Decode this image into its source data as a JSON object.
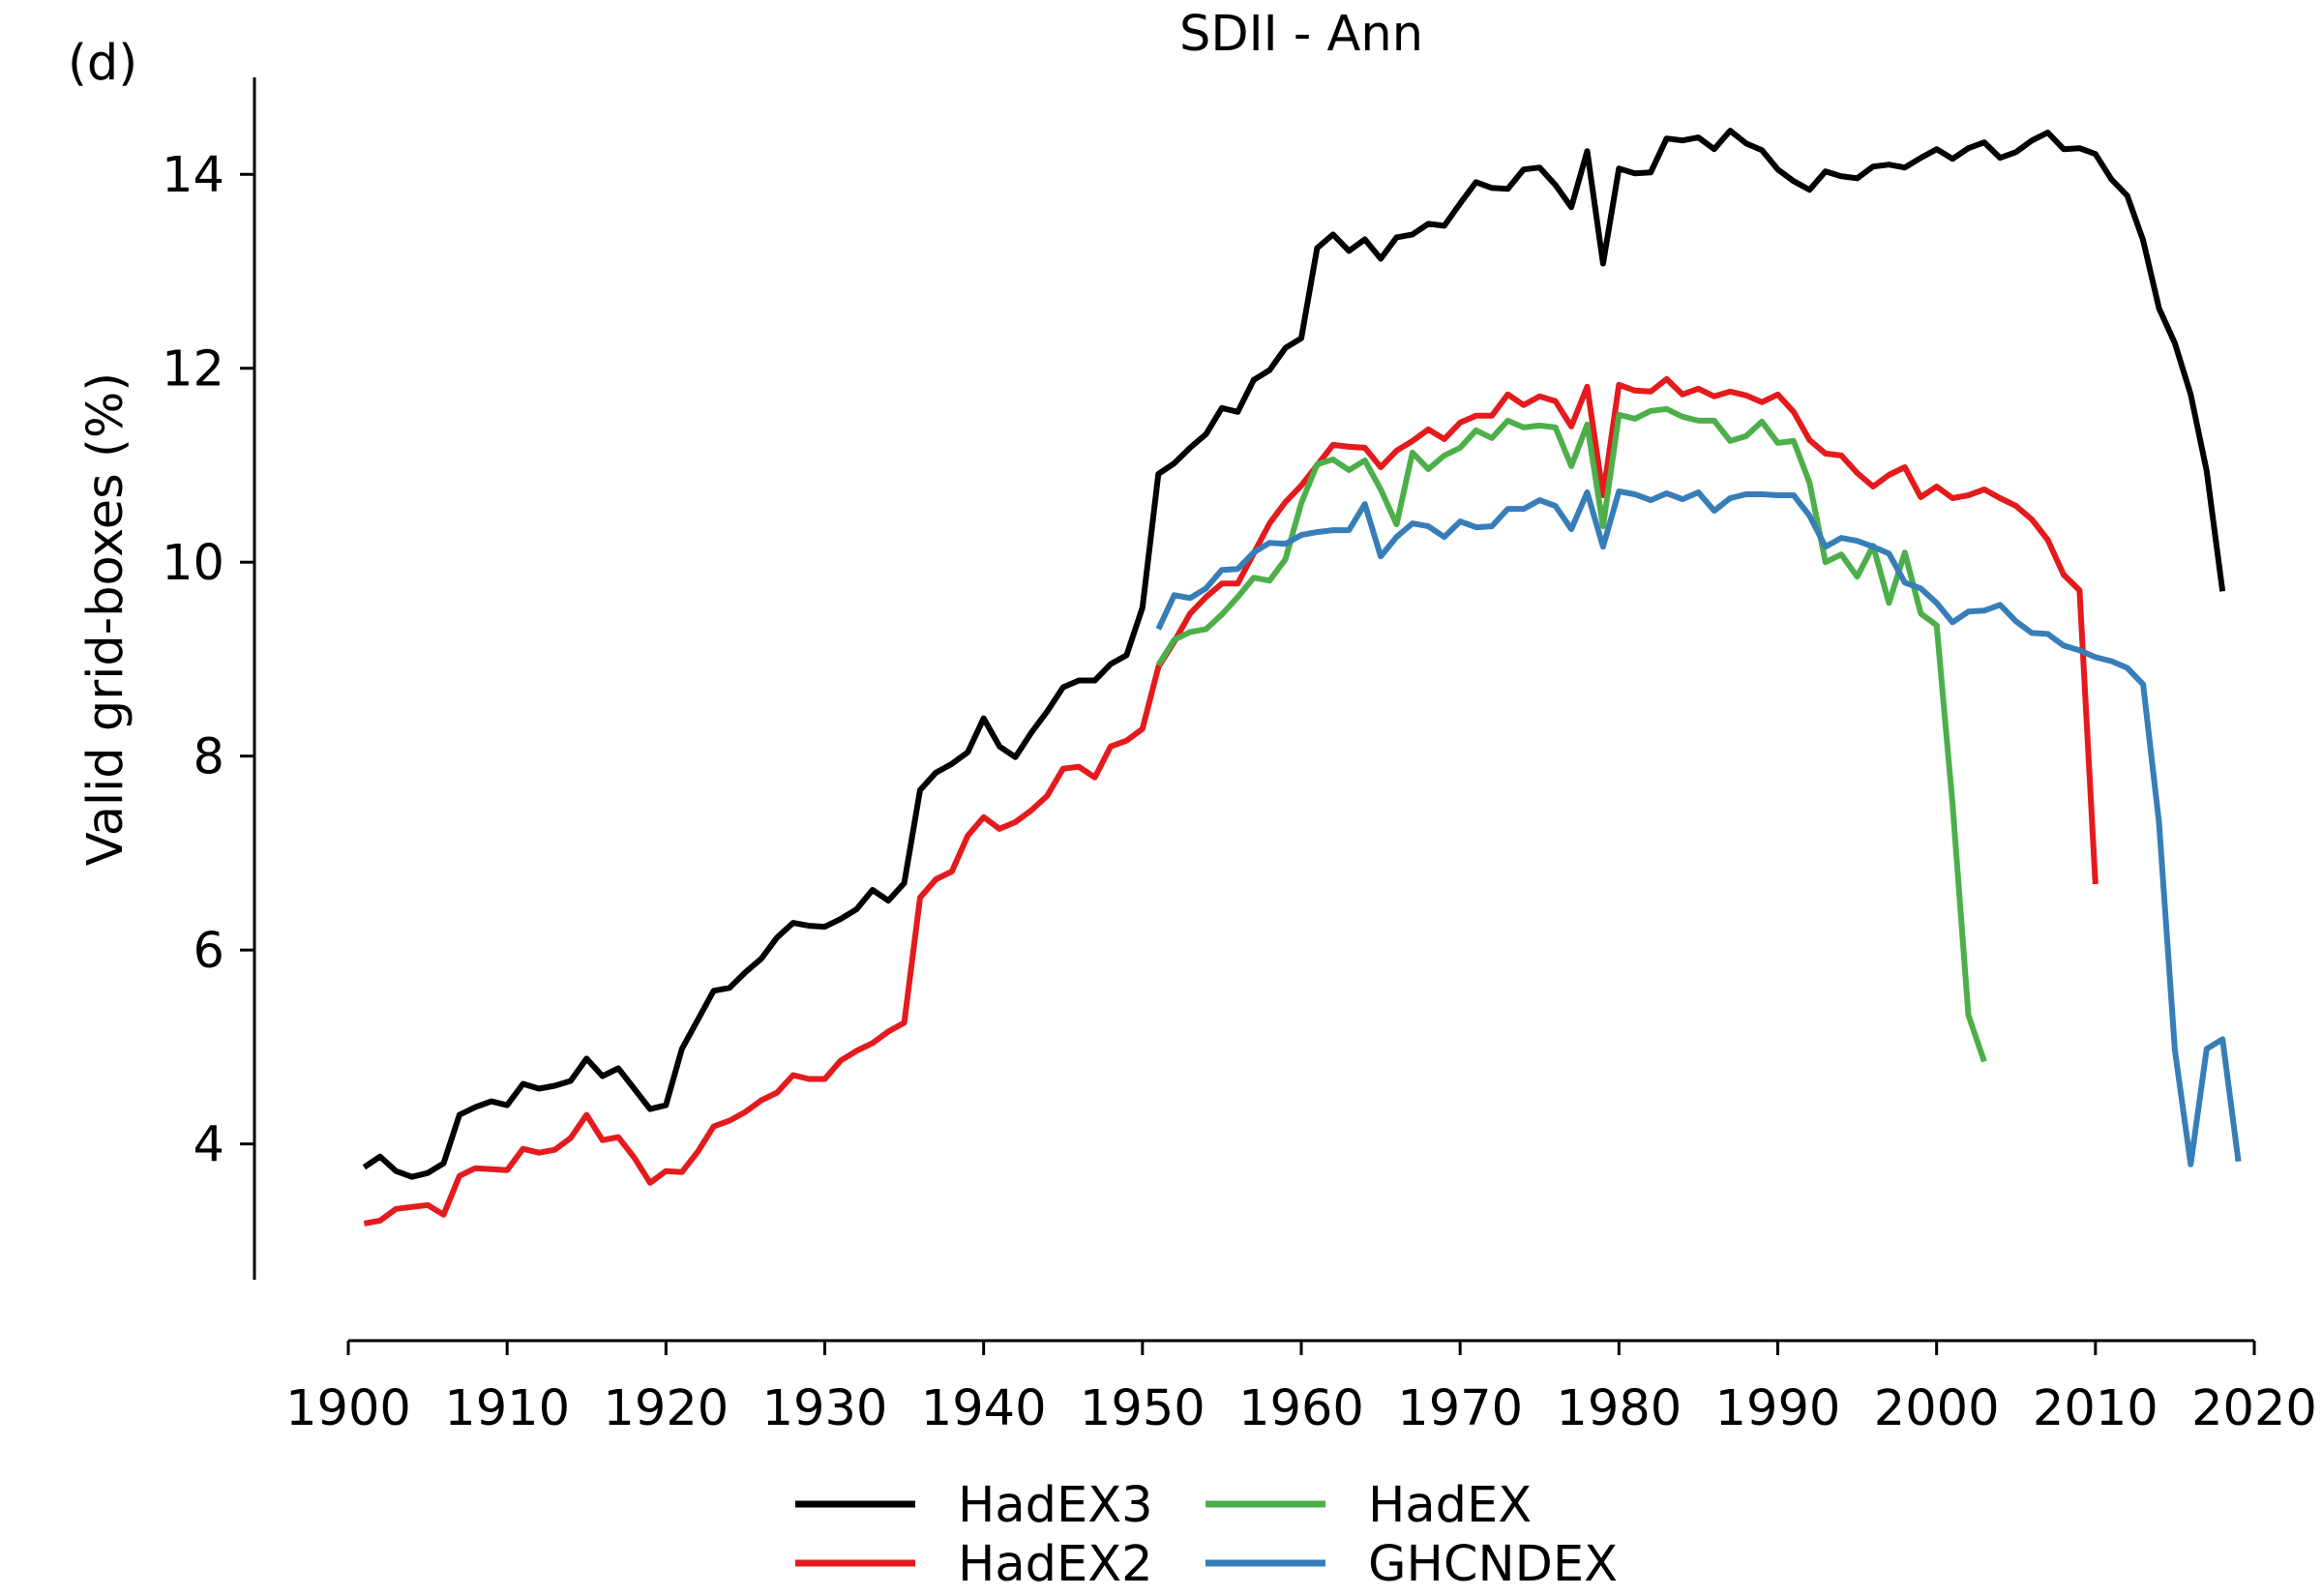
{
  "panel_label": "(d)",
  "chart_data": {
    "type": "line",
    "title": "SDII - Ann",
    "xlabel": "",
    "ylabel": "Valid grid-boxes (%)",
    "xlim": [
      1895,
      2020
    ],
    "ylim": [
      2.6,
      15.0
    ],
    "x_axis_range": [
      1900,
      2020
    ],
    "y_axis_range": [
      2.6,
      15.0
    ],
    "xticks": [
      1900,
      1910,
      1920,
      1930,
      1940,
      1950,
      1960,
      1970,
      1980,
      1990,
      2000,
      2010,
      2020
    ],
    "yticks": [
      4,
      6,
      8,
      10,
      12,
      14
    ],
    "grid": false,
    "legend": {
      "placement": "bottom",
      "columns": 2,
      "order": [
        "HadEX3",
        "HadEX2",
        "HadEX",
        "GHCNDEX"
      ]
    },
    "series": [
      {
        "name": "HadEX3",
        "color": "#000000",
        "x_start": 1901,
        "values": [
          3.76,
          3.87,
          3.72,
          3.66,
          3.7,
          3.8,
          4.3,
          4.38,
          4.44,
          4.4,
          4.62,
          4.57,
          4.6,
          4.65,
          4.88,
          4.7,
          4.78,
          4.57,
          4.36,
          4.4,
          4.98,
          5.28,
          5.58,
          5.61,
          5.77,
          5.91,
          6.13,
          6.28,
          6.25,
          6.24,
          6.32,
          6.42,
          6.62,
          6.51,
          6.69,
          7.65,
          7.83,
          7.92,
          8.04,
          8.39,
          8.1,
          7.99,
          8.24,
          8.46,
          8.71,
          8.78,
          8.78,
          8.95,
          9.04,
          9.53,
          10.91,
          11.02,
          11.18,
          11.32,
          11.59,
          11.55,
          11.88,
          11.98,
          12.21,
          12.31,
          13.24,
          13.38,
          13.21,
          13.33,
          13.13,
          13.35,
          13.38,
          13.49,
          13.47,
          13.7,
          13.92,
          13.86,
          13.85,
          14.05,
          14.07,
          13.89,
          13.66,
          14.24,
          13.08,
          14.06,
          14.01,
          14.02,
          14.37,
          14.35,
          14.38,
          14.26,
          14.45,
          14.32,
          14.25,
          14.05,
          13.93,
          13.84,
          14.03,
          13.98,
          13.96,
          14.08,
          14.1,
          14.07,
          14.17,
          14.26,
          14.16,
          14.27,
          14.33,
          14.17,
          14.23,
          14.35,
          14.43,
          14.26,
          14.27,
          14.21,
          13.95,
          13.78,
          13.32,
          12.62,
          12.26,
          11.73,
          10.94,
          9.7
        ]
      },
      {
        "name": "HadEX2",
        "color": "#e41a1c",
        "x_start": 1901,
        "values": [
          3.18,
          3.21,
          3.33,
          3.35,
          3.37,
          3.27,
          3.67,
          3.75,
          3.74,
          3.73,
          3.95,
          3.91,
          3.94,
          4.06,
          4.3,
          4.04,
          4.07,
          3.86,
          3.6,
          3.72,
          3.71,
          3.92,
          4.18,
          4.24,
          4.33,
          4.45,
          4.53,
          4.71,
          4.67,
          4.67,
          4.86,
          4.96,
          5.04,
          5.16,
          5.25,
          6.54,
          6.73,
          6.81,
          7.18,
          7.37,
          7.25,
          7.32,
          7.44,
          7.59,
          7.87,
          7.89,
          7.78,
          8.1,
          8.16,
          8.28,
          8.92,
          9.18,
          9.47,
          9.64,
          9.78,
          9.78,
          10.09,
          10.4,
          10.62,
          10.79,
          11.0,
          11.21,
          11.19,
          11.18,
          10.98,
          11.15,
          11.25,
          11.37,
          11.27,
          11.44,
          11.51,
          11.51,
          11.73,
          11.62,
          11.71,
          11.66,
          11.4,
          11.81,
          10.69,
          11.83,
          11.77,
          11.76,
          11.89,
          11.73,
          11.79,
          11.71,
          11.76,
          11.72,
          11.65,
          11.73,
          11.55,
          11.26,
          11.12,
          11.1,
          10.92,
          10.78,
          10.9,
          10.98,
          10.67,
          10.78,
          10.66,
          10.69,
          10.75,
          10.66,
          10.58,
          10.44,
          10.23,
          9.87,
          9.71,
          6.68
        ]
      },
      {
        "name": "HadEX",
        "color": "#4daf4a",
        "x_start": 1951,
        "values": [
          8.94,
          9.2,
          9.28,
          9.31,
          9.46,
          9.64,
          9.84,
          9.81,
          10.03,
          10.61,
          11.01,
          11.06,
          10.95,
          11.05,
          10.75,
          10.39,
          11.13,
          10.96,
          11.1,
          11.18,
          11.36,
          11.28,
          11.46,
          11.39,
          11.41,
          11.39,
          10.99,
          11.42,
          10.37,
          11.52,
          11.48,
          11.56,
          11.58,
          11.5,
          11.46,
          11.46,
          11.25,
          11.3,
          11.45,
          11.23,
          11.25,
          10.82,
          10.0,
          10.08,
          9.85,
          10.17,
          9.58,
          10.1,
          9.47,
          9.35,
          7.51,
          5.33,
          4.85
        ]
      },
      {
        "name": "GHCNDEX",
        "color": "#377eb8",
        "x_start": 1951,
        "values": [
          9.31,
          9.66,
          9.63,
          9.73,
          9.92,
          9.93,
          10.1,
          10.2,
          10.19,
          10.28,
          10.31,
          10.33,
          10.33,
          10.6,
          10.06,
          10.26,
          10.4,
          10.37,
          10.26,
          10.42,
          10.36,
          10.37,
          10.55,
          10.55,
          10.64,
          10.58,
          10.34,
          10.72,
          10.16,
          10.73,
          10.7,
          10.64,
          10.71,
          10.65,
          10.72,
          10.53,
          10.66,
          10.7,
          10.7,
          10.69,
          10.69,
          10.48,
          10.16,
          10.25,
          10.22,
          10.16,
          10.09,
          9.79,
          9.73,
          9.58,
          9.38,
          9.49,
          9.5,
          9.56,
          9.39,
          9.27,
          9.26,
          9.14,
          9.09,
          9.02,
          8.98,
          8.91,
          8.74,
          7.32,
          4.97,
          3.79,
          4.98,
          5.08,
          3.82
        ]
      }
    ]
  }
}
